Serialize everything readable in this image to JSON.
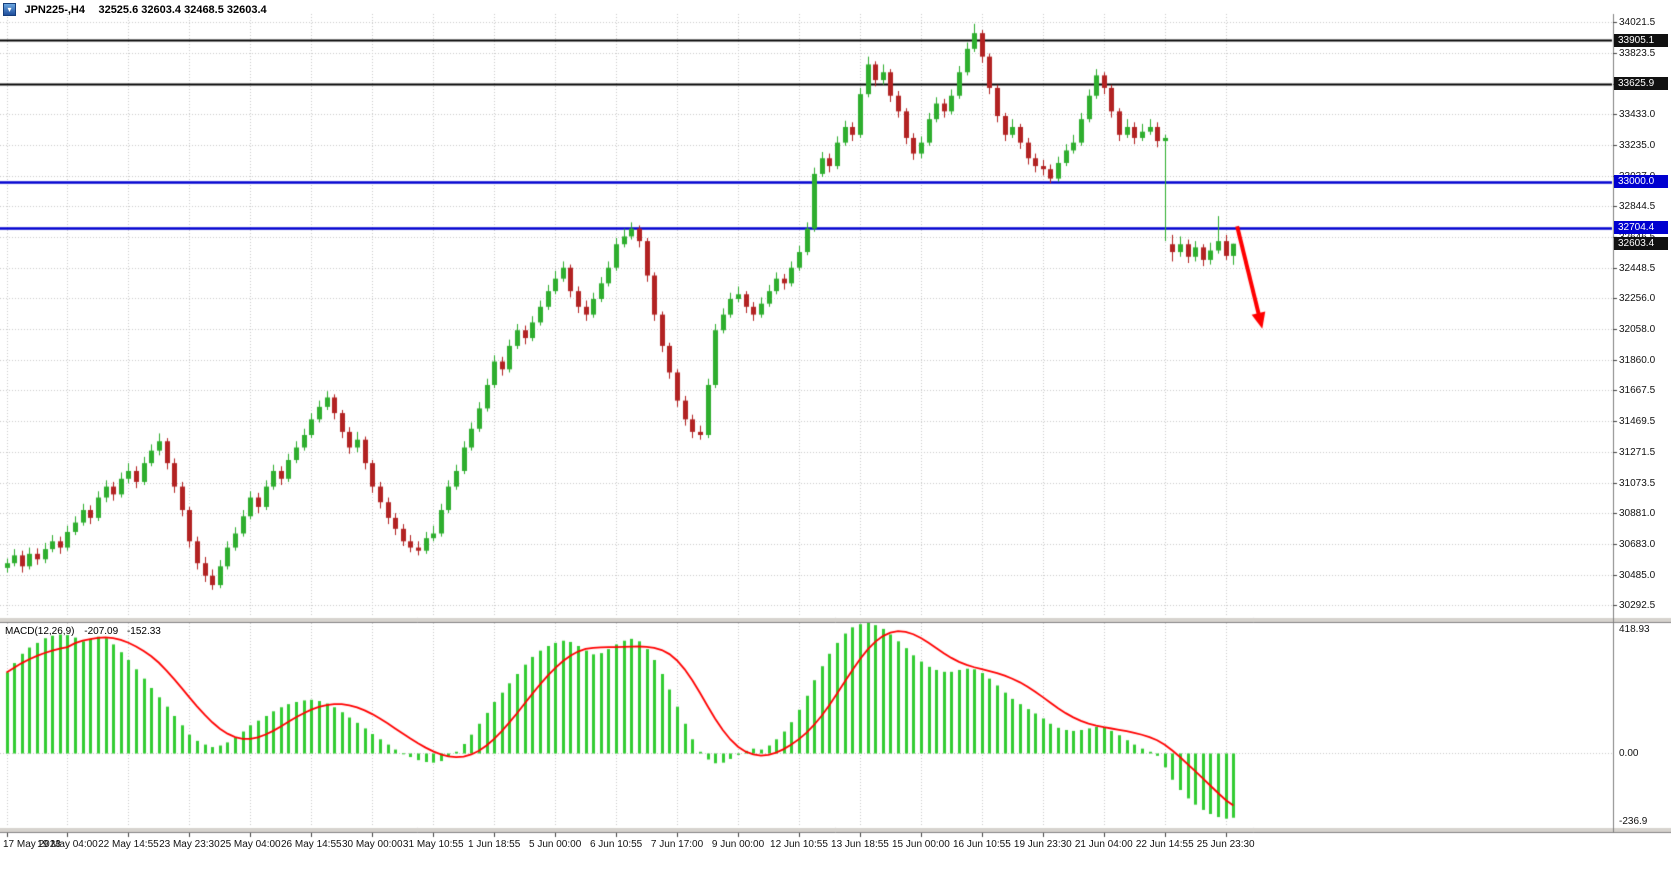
{
  "title_bar": {
    "symbol": "JPN225-,H4",
    "ohlc": "32525.6 32603.4 32468.5 32603.4"
  },
  "price_axis": {
    "ticks": [
      "34021.5",
      "33823.5",
      "33625.5",
      "33433.0",
      "33235.0",
      "33037.0",
      "32844.5",
      "32646.5",
      "32448.5",
      "32256.0",
      "32058.0",
      "31860.0",
      "31667.5",
      "31469.5",
      "31271.5",
      "31073.5",
      "30881.0",
      "30683.0",
      "30485.0",
      "30292.5"
    ]
  },
  "time_axis": {
    "ticks": [
      "17 May 2023",
      "19 May 04:00",
      "22 May 14:55",
      "23 May 23:30",
      "25 May 04:00",
      "26 May 14:55",
      "30 May 00:00",
      "31 May 10:55",
      "1 Jun 18:55",
      "5 Jun 00:00",
      "6 Jun 10:55",
      "7 Jun 17:00",
      "9 Jun 00:00",
      "12 Jun 10:55",
      "13 Jun 18:55",
      "15 Jun 00:00",
      "16 Jun 10:55",
      "19 Jun 23:30",
      "21 Jun 04:00",
      "22 Jun 14:55",
      "25 Jun 23:30"
    ]
  },
  "levels": [
    {
      "label": "33905.1",
      "price": 33905.1,
      "type": "resistance",
      "color": "#000000",
      "width": 2
    },
    {
      "label": "33625.9",
      "price": 33625.9,
      "type": "resistance",
      "color": "#000000",
      "width": 2
    },
    {
      "label": "33000.0",
      "price": 33000.0,
      "type": "support",
      "color": "#0000d0",
      "width": 2.5
    },
    {
      "label": "32704.4",
      "price": 32704.4,
      "type": "support",
      "color": "#0000d0",
      "width": 2.5
    }
  ],
  "current_price": {
    "label": "32603.4",
    "price": 32603.4,
    "badge_color": "#111111"
  },
  "macd": {
    "name": "MACD(12,26,9)",
    "main_value": "-207.09",
    "signal_value": "-152.33",
    "axis": {
      "max": "418.93",
      "zero": "0.00",
      "min": "-236.9"
    }
  },
  "arrow": {
    "color": "#ff0000",
    "from_index": 161.5,
    "from_price": 32715,
    "to_index": 164.8,
    "to_price": 32060,
    "width": 4
  },
  "colors": {
    "up": "#2eae2e",
    "down": "#b22222",
    "hist": "#33cc33",
    "signal": "#ff0000",
    "grid": "#c9c9c9",
    "axis_line": "#808080",
    "divider": "#d6d3ce",
    "badge_black": "#111111",
    "badge_blue": "#0000d0"
  },
  "chart_data": {
    "type": "candlestick",
    "symbol": "JPN225-",
    "timeframe": "H4",
    "title": "JPN225-,H4",
    "ylim": [
      30292.5,
      34021.5
    ],
    "candles_per_gridline": 8,
    "current_bar": {
      "open": 32525.6,
      "high": 32603.4,
      "low": 32468.5,
      "close": 32603.4
    },
    "candles": [
      [
        30530,
        30590,
        30500,
        30560
      ],
      [
        30560,
        30650,
        30540,
        30610
      ],
      [
        30610,
        30640,
        30500,
        30540
      ],
      [
        30540,
        30660,
        30520,
        30620
      ],
      [
        30620,
        30655,
        30550,
        30585
      ],
      [
        30585,
        30690,
        30560,
        30650
      ],
      [
        30650,
        30740,
        30630,
        30700
      ],
      [
        30700,
        30730,
        30620,
        30660
      ],
      [
        30660,
        30800,
        30640,
        30760
      ],
      [
        30760,
        30860,
        30740,
        30820
      ],
      [
        30820,
        30940,
        30800,
        30900
      ],
      [
        30900,
        30930,
        30810,
        30850
      ],
      [
        30850,
        31020,
        30830,
        30980
      ],
      [
        30980,
        31090,
        30950,
        31050
      ],
      [
        31050,
        31080,
        30960,
        31000
      ],
      [
        31000,
        31140,
        30980,
        31100
      ],
      [
        31100,
        31200,
        31070,
        31150
      ],
      [
        31150,
        31180,
        31040,
        31080
      ],
      [
        31080,
        31240,
        31060,
        31200
      ],
      [
        31200,
        31320,
        31180,
        31280
      ],
      [
        31280,
        31390,
        31250,
        31340
      ],
      [
        31340,
        31360,
        31160,
        31200
      ],
      [
        31200,
        31230,
        31010,
        31050
      ],
      [
        31050,
        31080,
        30860,
        30900
      ],
      [
        30900,
        30920,
        30660,
        30700
      ],
      [
        30700,
        30730,
        30520,
        30560
      ],
      [
        30560,
        30600,
        30440,
        30480
      ],
      [
        30480,
        30520,
        30390,
        30420
      ],
      [
        30420,
        30580,
        30400,
        30540
      ],
      [
        30540,
        30700,
        30520,
        30660
      ],
      [
        30660,
        30790,
        30640,
        30750
      ],
      [
        30750,
        30900,
        30730,
        30860
      ],
      [
        30860,
        31020,
        30840,
        30980
      ],
      [
        30980,
        31010,
        30880,
        30920
      ],
      [
        30920,
        31090,
        30900,
        31050
      ],
      [
        31050,
        31190,
        31030,
        31150
      ],
      [
        31150,
        31180,
        31060,
        31100
      ],
      [
        31100,
        31260,
        31080,
        31220
      ],
      [
        31220,
        31340,
        31200,
        31300
      ],
      [
        31300,
        31420,
        31280,
        31380
      ],
      [
        31380,
        31520,
        31360,
        31480
      ],
      [
        31480,
        31600,
        31460,
        31560
      ],
      [
        31560,
        31660,
        31540,
        31620
      ],
      [
        31620,
        31640,
        31480,
        31520
      ],
      [
        31520,
        31540,
        31360,
        31400
      ],
      [
        31400,
        31430,
        31260,
        31300
      ],
      [
        31300,
        31400,
        31270,
        31350
      ],
      [
        31350,
        31370,
        31160,
        31200
      ],
      [
        31200,
        31220,
        31010,
        31050
      ],
      [
        31050,
        31080,
        30910,
        30950
      ],
      [
        30950,
        30980,
        30810,
        30850
      ],
      [
        30850,
        30880,
        30740,
        30780
      ],
      [
        30780,
        30810,
        30670,
        30700
      ],
      [
        30700,
        30740,
        30630,
        30660
      ],
      [
        30660,
        30700,
        30610,
        30640
      ],
      [
        30640,
        30760,
        30620,
        30720
      ],
      [
        30720,
        30800,
        30700,
        30750
      ],
      [
        30750,
        30940,
        30730,
        30900
      ],
      [
        30900,
        31090,
        30880,
        31050
      ],
      [
        31050,
        31190,
        31030,
        31150
      ],
      [
        31150,
        31340,
        31130,
        31300
      ],
      [
        31300,
        31460,
        31280,
        31420
      ],
      [
        31420,
        31590,
        31400,
        31550
      ],
      [
        31550,
        31740,
        31530,
        31700
      ],
      [
        31700,
        31890,
        31680,
        31850
      ],
      [
        31850,
        31880,
        31760,
        31800
      ],
      [
        31800,
        31990,
        31780,
        31950
      ],
      [
        31950,
        32090,
        31930,
        32050
      ],
      [
        32050,
        32080,
        31960,
        32000
      ],
      [
        32000,
        32140,
        31980,
        32100
      ],
      [
        32100,
        32240,
        32080,
        32200
      ],
      [
        32200,
        32340,
        32180,
        32300
      ],
      [
        32300,
        32430,
        32280,
        32380
      ],
      [
        32380,
        32490,
        32360,
        32450
      ],
      [
        32450,
        32470,
        32260,
        32300
      ],
      [
        32300,
        32330,
        32160,
        32200
      ],
      [
        32200,
        32240,
        32110,
        32150
      ],
      [
        32150,
        32290,
        32130,
        32250
      ],
      [
        32250,
        32390,
        32230,
        32350
      ],
      [
        32350,
        32490,
        32330,
        32450
      ],
      [
        32450,
        32640,
        32430,
        32600
      ],
      [
        32600,
        32700,
        32580,
        32650
      ],
      [
        32650,
        32740,
        32630,
        32700
      ],
      [
        32700,
        32720,
        32580,
        32620
      ],
      [
        32620,
        32640,
        32360,
        32400
      ],
      [
        32400,
        32420,
        32110,
        32150
      ],
      [
        32150,
        32170,
        31910,
        31950
      ],
      [
        31950,
        31970,
        31740,
        31780
      ],
      [
        31780,
        31800,
        31560,
        31600
      ],
      [
        31600,
        31630,
        31440,
        31480
      ],
      [
        31480,
        31510,
        31360,
        31400
      ],
      [
        31400,
        31440,
        31350,
        31380
      ],
      [
        31380,
        31740,
        31360,
        31700
      ],
      [
        31700,
        32090,
        31680,
        32050
      ],
      [
        32050,
        32190,
        32030,
        32150
      ],
      [
        32150,
        32290,
        32130,
        32250
      ],
      [
        32250,
        32330,
        32230,
        32280
      ],
      [
        32280,
        32300,
        32160,
        32200
      ],
      [
        32200,
        32230,
        32110,
        32150
      ],
      [
        32150,
        32260,
        32130,
        32220
      ],
      [
        32220,
        32340,
        32200,
        32300
      ],
      [
        32300,
        32420,
        32280,
        32380
      ],
      [
        32380,
        32410,
        32310,
        32350
      ],
      [
        32350,
        32490,
        32330,
        32450
      ],
      [
        32450,
        32590,
        32430,
        32550
      ],
      [
        32550,
        32740,
        32530,
        32700
      ],
      [
        32700,
        33090,
        32680,
        33050
      ],
      [
        33050,
        33190,
        33030,
        33150
      ],
      [
        33150,
        33180,
        33060,
        33100
      ],
      [
        33100,
        33290,
        33080,
        33250
      ],
      [
        33250,
        33390,
        33230,
        33350
      ],
      [
        33350,
        33380,
        33260,
        33300
      ],
      [
        33300,
        33600,
        33280,
        33560
      ],
      [
        33560,
        33800,
        33540,
        33750
      ],
      [
        33750,
        33770,
        33610,
        33650
      ],
      [
        33650,
        33750,
        33620,
        33700
      ],
      [
        33700,
        33720,
        33510,
        33550
      ],
      [
        33550,
        33580,
        33410,
        33450
      ],
      [
        33450,
        33470,
        33240,
        33280
      ],
      [
        33280,
        33310,
        33140,
        33180
      ],
      [
        33180,
        33290,
        33150,
        33250
      ],
      [
        33250,
        33440,
        33230,
        33400
      ],
      [
        33400,
        33540,
        33380,
        33500
      ],
      [
        33500,
        33530,
        33410,
        33450
      ],
      [
        33450,
        33590,
        33430,
        33550
      ],
      [
        33550,
        33740,
        33530,
        33700
      ],
      [
        33700,
        33890,
        33680,
        33850
      ],
      [
        33850,
        34010,
        33830,
        33950
      ],
      [
        33950,
        33970,
        33760,
        33800
      ],
      [
        33800,
        33820,
        33560,
        33600
      ],
      [
        33600,
        33620,
        33380,
        33420
      ],
      [
        33420,
        33440,
        33260,
        33300
      ],
      [
        33300,
        33400,
        33280,
        33350
      ],
      [
        33350,
        33370,
        33210,
        33250
      ],
      [
        33250,
        33280,
        33110,
        33150
      ],
      [
        33150,
        33180,
        33060,
        33100
      ],
      [
        33100,
        33140,
        33040,
        33080
      ],
      [
        33080,
        33110,
        32990,
        33020
      ],
      [
        33020,
        33160,
        33000,
        33120
      ],
      [
        33120,
        33240,
        33100,
        33200
      ],
      [
        33200,
        33300,
        33180,
        33250
      ],
      [
        33250,
        33440,
        33230,
        33400
      ],
      [
        33400,
        33590,
        33380,
        33550
      ],
      [
        33550,
        33720,
        33530,
        33680
      ],
      [
        33680,
        33700,
        33560,
        33600
      ],
      [
        33600,
        33620,
        33410,
        33450
      ],
      [
        33450,
        33470,
        33260,
        33300
      ],
      [
        33300,
        33400,
        33280,
        33350
      ],
      [
        33350,
        33380,
        33240,
        33280
      ],
      [
        33280,
        33370,
        33260,
        33320
      ],
      [
        33320,
        33400,
        33300,
        33350
      ],
      [
        33350,
        33380,
        33220,
        33260
      ],
      [
        33260,
        33300,
        32620,
        33280
      ],
      [
        32600,
        32660,
        32490,
        32550
      ],
      [
        32550,
        32650,
        32520,
        32600
      ],
      [
        32600,
        32630,
        32480,
        32520
      ],
      [
        32520,
        32620,
        32490,
        32580
      ],
      [
        32580,
        32600,
        32460,
        32500
      ],
      [
        32500,
        32610,
        32470,
        32560
      ],
      [
        32560,
        32780,
        32540,
        32620
      ],
      [
        32620,
        32660,
        32500,
        32525.6
      ],
      [
        32525.6,
        32603.4,
        32468.5,
        32603.4
      ]
    ],
    "indicator": {
      "name": "MACD(12,26,9)",
      "signal_smoothing": "SMA9",
      "axis_max": 418.93,
      "axis_min": -236.9,
      "histogram": [
        260,
        290,
        320,
        340,
        355,
        370,
        378,
        382,
        380,
        372,
        360,
        368,
        375,
        370,
        350,
        325,
        300,
        270,
        240,
        210,
        180,
        150,
        120,
        90,
        60,
        40,
        28,
        20,
        25,
        35,
        50,
        70,
        90,
        105,
        120,
        135,
        148,
        158,
        165,
        170,
        172,
        168,
        160,
        148,
        132,
        115,
        98,
        80,
        62,
        45,
        28,
        12,
        0,
        -12,
        -22,
        -28,
        -30,
        -25,
        -12,
        5,
        30,
        60,
        95,
        130,
        165,
        195,
        225,
        255,
        285,
        310,
        330,
        345,
        355,
        362,
        358,
        345,
        330,
        318,
        322,
        335,
        350,
        362,
        368,
        360,
        335,
        300,
        255,
        205,
        150,
        95,
        45,
        5,
        -20,
        -32,
        -30,
        -18,
        -5,
        8,
        15,
        12,
        25,
        45,
        70,
        100,
        140,
        185,
        235,
        280,
        320,
        355,
        385,
        405,
        415,
        418.93,
        412,
        400,
        382,
        360,
        338,
        315,
        295,
        278,
        268,
        262,
        262,
        268,
        272,
        270,
        258,
        240,
        218,
        195,
        175,
        158,
        142,
        128,
        112,
        95,
        82,
        75,
        72,
        75,
        80,
        85,
        82,
        72,
        58,
        42,
        28,
        15,
        5,
        -8,
        -45,
        -85,
        -118,
        -145,
        -165,
        -182,
        -195,
        -205,
        -210,
        -207.09
      ]
    }
  }
}
